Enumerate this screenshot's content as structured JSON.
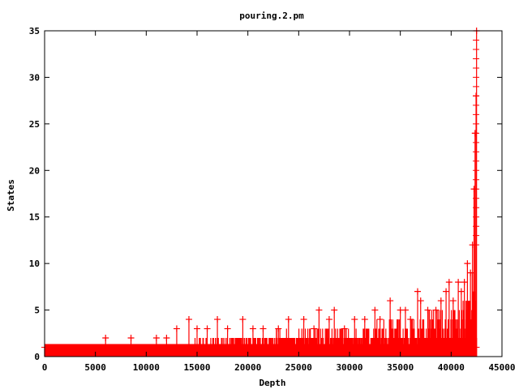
{
  "chart_data": {
    "type": "scatter",
    "title": "pouring.2.pm",
    "xlabel": "Depth",
    "ylabel": "States",
    "xlim": [
      0,
      45000
    ],
    "ylim": [
      0,
      35
    ],
    "xticks": [
      0,
      5000,
      10000,
      15000,
      20000,
      25000,
      30000,
      35000,
      40000,
      45000
    ],
    "yticks": [
      0,
      5,
      10,
      15,
      20,
      25,
      30,
      35
    ],
    "x_max": 42500,
    "grid": false,
    "legend": "none",
    "marker": "cross",
    "impulses": true,
    "color": "#ff0000",
    "baseline_value": 1,
    "outliers": [
      {
        "x": 6000,
        "y": 2
      },
      {
        "x": 8500,
        "y": 2
      },
      {
        "x": 11000,
        "y": 2
      },
      {
        "x": 12000,
        "y": 2
      },
      {
        "x": 13000,
        "y": 3
      },
      {
        "x": 14200,
        "y": 4
      },
      {
        "x": 15000,
        "y": 3
      },
      {
        "x": 16000,
        "y": 3
      },
      {
        "x": 17000,
        "y": 4
      },
      {
        "x": 18000,
        "y": 3
      },
      {
        "x": 19500,
        "y": 4
      },
      {
        "x": 20500,
        "y": 3
      },
      {
        "x": 21500,
        "y": 3
      },
      {
        "x": 23000,
        "y": 3
      },
      {
        "x": 24000,
        "y": 4
      },
      {
        "x": 25500,
        "y": 4
      },
      {
        "x": 26500,
        "y": 3
      },
      {
        "x": 27000,
        "y": 5
      },
      {
        "x": 28000,
        "y": 4
      },
      {
        "x": 28500,
        "y": 5
      },
      {
        "x": 29500,
        "y": 3
      },
      {
        "x": 30500,
        "y": 4
      },
      {
        "x": 31500,
        "y": 4
      },
      {
        "x": 32500,
        "y": 5
      },
      {
        "x": 33000,
        "y": 4
      },
      {
        "x": 34000,
        "y": 6
      },
      {
        "x": 35000,
        "y": 5
      },
      {
        "x": 35500,
        "y": 5
      },
      {
        "x": 36000,
        "y": 4
      },
      {
        "x": 36700,
        "y": 7
      },
      {
        "x": 37000,
        "y": 6
      },
      {
        "x": 37700,
        "y": 5
      },
      {
        "x": 38500,
        "y": 5
      },
      {
        "x": 39000,
        "y": 6
      },
      {
        "x": 39500,
        "y": 7
      },
      {
        "x": 39800,
        "y": 8
      },
      {
        "x": 40200,
        "y": 6
      },
      {
        "x": 40700,
        "y": 8
      },
      {
        "x": 41000,
        "y": 7
      },
      {
        "x": 41300,
        "y": 8
      },
      {
        "x": 41600,
        "y": 10
      },
      {
        "x": 41900,
        "y": 9
      },
      {
        "x": 42100,
        "y": 12
      },
      {
        "x": 42250,
        "y": 18
      },
      {
        "x": 42350,
        "y": 24
      },
      {
        "x": 42450,
        "y": 28
      },
      {
        "x": 42500,
        "y": 35
      }
    ]
  }
}
